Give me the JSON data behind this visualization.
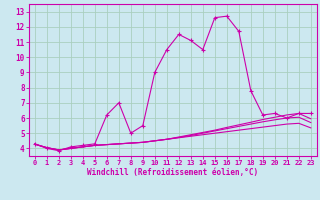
{
  "background_color": "#cce8f0",
  "grid_color": "#aacfbf",
  "line_color": "#cc00aa",
  "xlabel": "Windchill (Refroidissement éolien,°C)",
  "xlim": [
    -0.5,
    23.5
  ],
  "ylim": [
    3.5,
    13.5
  ],
  "yticks": [
    4,
    5,
    6,
    7,
    8,
    9,
    10,
    11,
    12,
    13
  ],
  "xticks": [
    0,
    1,
    2,
    3,
    4,
    5,
    6,
    7,
    8,
    9,
    10,
    11,
    12,
    13,
    14,
    15,
    16,
    17,
    18,
    19,
    20,
    21,
    22,
    23
  ],
  "series1_x": [
    0,
    1,
    2,
    3,
    4,
    5,
    6,
    7,
    8,
    9,
    10,
    11,
    12,
    13,
    14,
    15,
    16,
    17,
    18,
    19,
    20,
    21,
    22,
    23
  ],
  "series1_y": [
    4.3,
    4.0,
    3.85,
    4.1,
    4.2,
    4.3,
    6.2,
    7.0,
    5.0,
    5.5,
    9.0,
    10.5,
    11.5,
    11.1,
    10.5,
    12.6,
    12.7,
    11.7,
    7.8,
    6.2,
    6.3,
    6.0,
    6.3,
    6.3
  ],
  "series2_x": [
    0,
    1,
    2,
    3,
    4,
    5,
    6,
    7,
    8,
    9,
    10,
    11,
    12,
    13,
    14,
    15,
    16,
    17,
    18,
    19,
    20,
    21,
    22,
    23
  ],
  "series2_y": [
    4.28,
    4.05,
    3.9,
    4.0,
    4.1,
    4.2,
    4.25,
    4.3,
    4.35,
    4.4,
    4.5,
    4.6,
    4.7,
    4.8,
    4.9,
    5.0,
    5.1,
    5.2,
    5.3,
    5.4,
    5.5,
    5.6,
    5.65,
    5.35
  ],
  "series3_x": [
    0,
    1,
    2,
    3,
    4,
    5,
    6,
    7,
    8,
    9,
    10,
    11,
    12,
    13,
    14,
    15,
    16,
    17,
    18,
    19,
    20,
    21,
    22,
    23
  ],
  "series3_y": [
    4.28,
    4.05,
    3.9,
    4.0,
    4.1,
    4.2,
    4.25,
    4.3,
    4.35,
    4.4,
    4.5,
    4.6,
    4.72,
    4.85,
    5.0,
    5.15,
    5.3,
    5.45,
    5.6,
    5.75,
    5.88,
    6.0,
    6.05,
    5.7
  ],
  "series4_x": [
    0,
    1,
    2,
    3,
    4,
    5,
    6,
    7,
    8,
    9,
    10,
    11,
    12,
    13,
    14,
    15,
    16,
    17,
    18,
    19,
    20,
    21,
    22,
    23
  ],
  "series4_y": [
    4.28,
    4.05,
    3.9,
    4.0,
    4.1,
    4.2,
    4.25,
    4.3,
    4.35,
    4.4,
    4.5,
    4.6,
    4.75,
    4.9,
    5.05,
    5.2,
    5.38,
    5.55,
    5.72,
    5.9,
    6.05,
    6.2,
    6.3,
    5.95
  ]
}
